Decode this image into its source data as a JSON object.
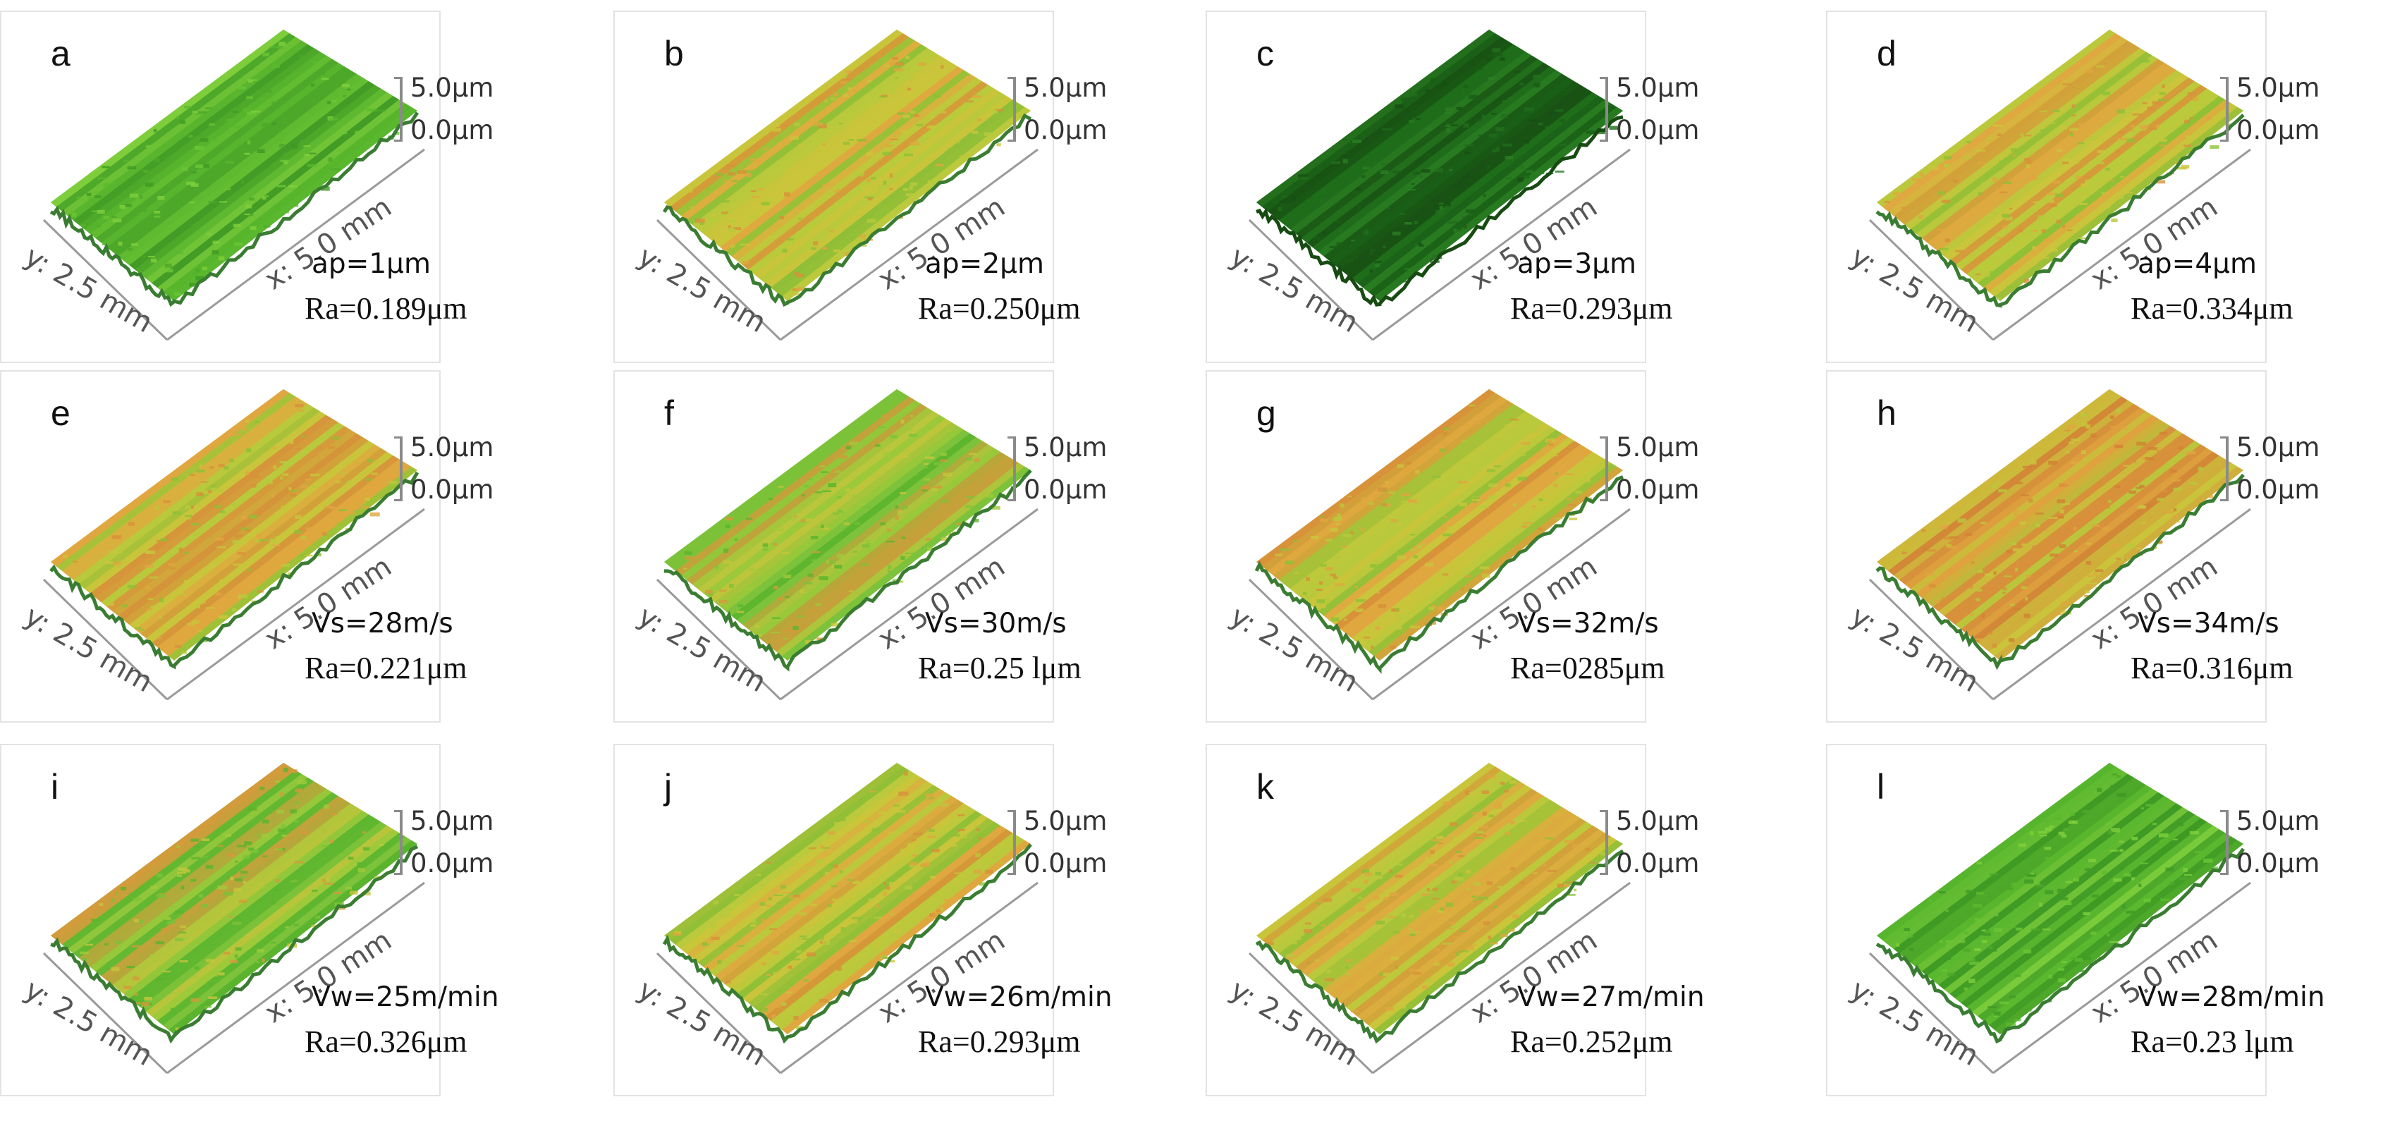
{
  "scale": {
    "top": "5.0μm",
    "bottom": "0.0μm"
  },
  "axes": {
    "x": "x: 5.0 mm",
    "y": "y: 2.5 mm"
  },
  "colors": {
    "green": "#55b52a",
    "dark_green": "#1f6d1a",
    "orange": "#d7913a",
    "yellow": "#c9c53b",
    "blue_edge": "#3c6e8c"
  },
  "panels": [
    {
      "letter": "a",
      "param": "ap=1μm",
      "ra": "Ra=0.189μm",
      "palette": "green"
    },
    {
      "letter": "b",
      "param": "ap=2μm",
      "ra": "Ra=0.250μm",
      "palette": "yellow-orange"
    },
    {
      "letter": "c",
      "param": "ap=3μm",
      "ra": "Ra=0.293μm",
      "palette": "dark-green"
    },
    {
      "letter": "d",
      "param": "ap=4μm",
      "ra": "Ra=0.334μm",
      "palette": "yellow-orange"
    },
    {
      "letter": "e",
      "param": "Vs=28m/s",
      "ra": "Ra=0.221μm",
      "palette": "yellow-orange"
    },
    {
      "letter": "f",
      "param": "Vs=30m/s",
      "ra": "Ra=0.25 lμm",
      "palette": "green-yellow"
    },
    {
      "letter": "g",
      "param": "Vs=32m/s",
      "ra": "Ra=0285μm",
      "palette": "yellow-orange"
    },
    {
      "letter": "h",
      "param": "Vs=34m/s",
      "ra": "Ra=0.316μm",
      "palette": "orange"
    },
    {
      "letter": "i",
      "param": "Vw=25m/min",
      "ra": "Ra=0.326μm",
      "palette": "green-yellow"
    },
    {
      "letter": "j",
      "param": "Vw=26m/min",
      "ra": "Ra=0.293μm",
      "palette": "yellow-orange"
    },
    {
      "letter": "k",
      "param": "Vw=27m/min",
      "ra": "Ra=0.252μm",
      "palette": "yellow-orange"
    },
    {
      "letter": "l",
      "param": "Vw=28m/min",
      "ra": "Ra=0.23 lμm",
      "palette": "green"
    }
  ]
}
